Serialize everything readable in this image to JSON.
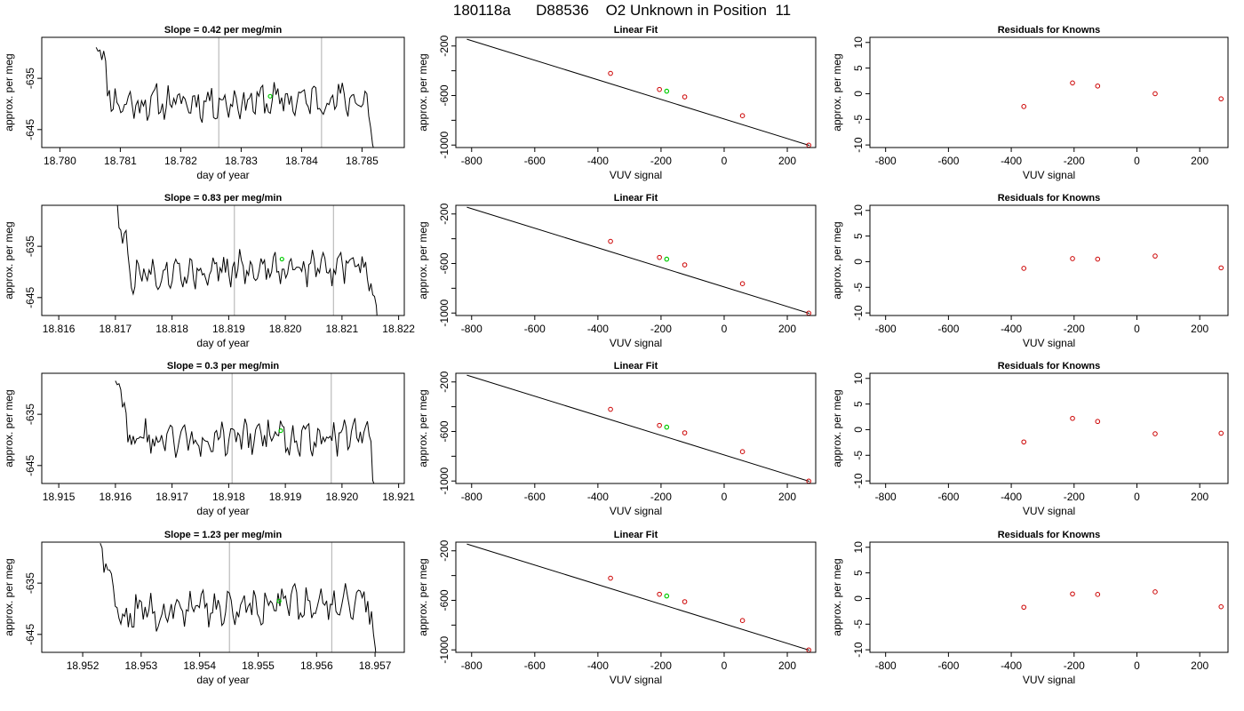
{
  "title": "180118a      D88536    O2 Unknown in Position  11",
  "colors": {
    "trace": "#000000",
    "marker": "#00cc00",
    "known": "#cc0000",
    "vline": "#bbbbbb",
    "fit": "#000000"
  },
  "chart_data": [
    {
      "type": "line",
      "panel": "timeseries",
      "row": 0,
      "title": "Slope =  0.42  per meg/min",
      "xlabel": "day of year",
      "ylabel": "approx. per meg",
      "xlim": [
        18.7797,
        18.7857
      ],
      "ylim": [
        -648.5,
        -627
      ],
      "xticks": [
        "18.780",
        "18.781",
        "18.782",
        "18.783",
        "18.784",
        "18.785"
      ],
      "yticks": [
        "-635",
        "-645"
      ],
      "x_start": 18.7806,
      "x_end": 18.7853,
      "vlines": [
        18.78263,
        18.78433
      ],
      "marker": {
        "x": 18.78348,
        "y": -638.5
      },
      "seed": 11,
      "slope_drift": 0.42
    },
    {
      "type": "line",
      "panel": "fit",
      "row": 0,
      "title": "Linear Fit",
      "xlabel": "VUV signal",
      "ylabel": "approx. per meg",
      "xlim": [
        -850,
        290
      ],
      "ylim": [
        -1020,
        -130
      ],
      "xticks": [
        "-800",
        "-600",
        "-400",
        "-200",
        "0",
        "200"
      ],
      "yticks": [
        "-200",
        "-600",
        "-1000"
      ],
      "line": {
        "x0": -815,
        "y0": -145,
        "x1": 270,
        "y1": -1003
      },
      "knowns": [
        {
          "x": -360,
          "y": -421
        },
        {
          "x": -205,
          "y": -551
        },
        {
          "x": -125,
          "y": -611
        },
        {
          "x": 58,
          "y": -763
        },
        {
          "x": 268,
          "y": -1001
        }
      ],
      "unknown": {
        "x": -182,
        "y": -565
      }
    },
    {
      "type": "scatter",
      "panel": "residuals",
      "row": 0,
      "title": "Residuals for Knowns",
      "xlabel": "VUV signal",
      "ylabel": "approx. per meg",
      "xlim": [
        -850,
        290
      ],
      "ylim": [
        -10.5,
        11
      ],
      "xticks": [
        "-800",
        "-600",
        "-400",
        "-200",
        "0",
        "200"
      ],
      "yticks": [
        "10",
        "5",
        "0",
        "-5",
        "-10"
      ],
      "points": [
        {
          "x": -360,
          "y": -2.5
        },
        {
          "x": -205,
          "y": 2.1
        },
        {
          "x": -125,
          "y": 1.5
        },
        {
          "x": 58,
          "y": 0.0
        },
        {
          "x": 268,
          "y": -1.0
        }
      ]
    },
    {
      "type": "line",
      "panel": "timeseries",
      "row": 1,
      "title": "Slope =  0.83  per meg/min",
      "xlabel": "day of year",
      "ylabel": "approx. per meg",
      "xlim": [
        18.8157,
        18.8221
      ],
      "ylim": [
        -648.5,
        -627
      ],
      "xticks": [
        "18.816",
        "18.817",
        "18.818",
        "18.819",
        "18.820",
        "18.821",
        "18.822"
      ],
      "yticks": [
        "-635",
        "-645"
      ],
      "x_start": 18.817,
      "x_end": 18.8217,
      "vlines": [
        18.8191,
        18.82085
      ],
      "marker": {
        "x": 18.81994,
        "y": -637.5
      },
      "seed": 27,
      "slope_drift": 0.83
    },
    {
      "type": "line",
      "panel": "fit",
      "row": 1,
      "title": "Linear Fit",
      "xlabel": "VUV signal",
      "ylabel": "approx. per meg",
      "xlim": [
        -850,
        290
      ],
      "ylim": [
        -1020,
        -130
      ],
      "xticks": [
        "-800",
        "-600",
        "-400",
        "-200",
        "0",
        "200"
      ],
      "yticks": [
        "-200",
        "-600",
        "-1000"
      ],
      "line": {
        "x0": -815,
        "y0": -145,
        "x1": 270,
        "y1": -1003
      },
      "knowns": [
        {
          "x": -360,
          "y": -421
        },
        {
          "x": -205,
          "y": -551
        },
        {
          "x": -125,
          "y": -611
        },
        {
          "x": 58,
          "y": -763
        },
        {
          "x": 268,
          "y": -1001
        }
      ],
      "unknown": {
        "x": -182,
        "y": -565
      }
    },
    {
      "type": "scatter",
      "panel": "residuals",
      "row": 1,
      "title": "Residuals for Knowns",
      "xlabel": "VUV signal",
      "ylabel": "approx. per meg",
      "xlim": [
        -850,
        290
      ],
      "ylim": [
        -10.5,
        11
      ],
      "xticks": [
        "-800",
        "-600",
        "-400",
        "-200",
        "0",
        "200"
      ],
      "yticks": [
        "10",
        "5",
        "0",
        "-5",
        "-10"
      ],
      "points": [
        {
          "x": -360,
          "y": -1.3
        },
        {
          "x": -205,
          "y": 0.6
        },
        {
          "x": -125,
          "y": 0.5
        },
        {
          "x": 58,
          "y": 1.1
        },
        {
          "x": 268,
          "y": -1.2
        }
      ]
    },
    {
      "type": "line",
      "panel": "timeseries",
      "row": 2,
      "title": "Slope =  0.3  per meg/min",
      "xlabel": "day of year",
      "ylabel": "approx. per meg",
      "xlim": [
        18.9147,
        18.9211
      ],
      "ylim": [
        -648.5,
        -627
      ],
      "xticks": [
        "18.915",
        "18.916",
        "18.917",
        "18.918",
        "18.919",
        "18.920",
        "18.921"
      ],
      "yticks": [
        "-635",
        "-645"
      ],
      "x_start": 18.916,
      "x_end": 18.9207,
      "vlines": [
        18.91806,
        18.91981
      ],
      "marker": {
        "x": 18.91892,
        "y": -638.2
      },
      "seed": 43,
      "slope_drift": 0.3
    },
    {
      "type": "line",
      "panel": "fit",
      "row": 2,
      "title": "Linear Fit",
      "xlabel": "VUV signal",
      "ylabel": "approx. per meg",
      "xlim": [
        -850,
        290
      ],
      "ylim": [
        -1020,
        -130
      ],
      "xticks": [
        "-800",
        "-600",
        "-400",
        "-200",
        "0",
        "200"
      ],
      "yticks": [
        "-200",
        "-600",
        "-1000"
      ],
      "line": {
        "x0": -815,
        "y0": -145,
        "x1": 270,
        "y1": -1003
      },
      "knowns": [
        {
          "x": -360,
          "y": -421
        },
        {
          "x": -205,
          "y": -551
        },
        {
          "x": -125,
          "y": -611
        },
        {
          "x": 58,
          "y": -763
        },
        {
          "x": 268,
          "y": -1001
        }
      ],
      "unknown": {
        "x": -182,
        "y": -565
      }
    },
    {
      "type": "scatter",
      "panel": "residuals",
      "row": 2,
      "title": "Residuals for Knowns",
      "xlabel": "VUV signal",
      "ylabel": "approx. per meg",
      "xlim": [
        -850,
        290
      ],
      "ylim": [
        -10.5,
        11
      ],
      "xticks": [
        "-800",
        "-600",
        "-400",
        "-200",
        "0",
        "200"
      ],
      "yticks": [
        "10",
        "5",
        "0",
        "-5",
        "-10"
      ],
      "points": [
        {
          "x": -360,
          "y": -2.4
        },
        {
          "x": -205,
          "y": 2.2
        },
        {
          "x": -125,
          "y": 1.6
        },
        {
          "x": 58,
          "y": -0.8
        },
        {
          "x": 268,
          "y": -0.7
        }
      ]
    },
    {
      "type": "line",
      "panel": "timeseries",
      "row": 3,
      "title": "Slope =  1.23  per meg/min",
      "xlabel": "day of year",
      "ylabel": "approx. per meg",
      "xlim": [
        18.9513,
        18.9575
      ],
      "ylim": [
        -648.5,
        -627
      ],
      "xticks": [
        "18.952",
        "18.953",
        "18.954",
        "18.955",
        "18.956",
        "18.957"
      ],
      "yticks": [
        "-635",
        "-645"
      ],
      "x_start": 18.9523,
      "x_end": 18.9571,
      "vlines": [
        18.95451,
        18.95626
      ],
      "marker": {
        "x": 18.95536,
        "y": -638.5
      },
      "seed": 59,
      "slope_drift": 1.23
    },
    {
      "type": "line",
      "panel": "fit",
      "row": 3,
      "title": "Linear Fit",
      "xlabel": "VUV signal",
      "ylabel": "approx. per meg",
      "xlim": [
        -850,
        290
      ],
      "ylim": [
        -1020,
        -130
      ],
      "xticks": [
        "-800",
        "-600",
        "-400",
        "-200",
        "0",
        "200"
      ],
      "yticks": [
        "-200",
        "-600",
        "-1000"
      ],
      "line": {
        "x0": -815,
        "y0": -145,
        "x1": 270,
        "y1": -1003
      },
      "knowns": [
        {
          "x": -360,
          "y": -421
        },
        {
          "x": -205,
          "y": -551
        },
        {
          "x": -125,
          "y": -611
        },
        {
          "x": 58,
          "y": -763
        },
        {
          "x": 268,
          "y": -1001
        }
      ],
      "unknown": {
        "x": -182,
        "y": -565
      }
    },
    {
      "type": "scatter",
      "panel": "residuals",
      "row": 3,
      "title": "Residuals for Knowns",
      "xlabel": "VUV signal",
      "ylabel": "approx. per meg",
      "xlim": [
        -850,
        290
      ],
      "ylim": [
        -10.5,
        11
      ],
      "xticks": [
        "-800",
        "-600",
        "-400",
        "-200",
        "0",
        "200"
      ],
      "yticks": [
        "10",
        "5",
        "0",
        "-5",
        "-10"
      ],
      "points": [
        {
          "x": -360,
          "y": -1.7
        },
        {
          "x": -205,
          "y": 0.9
        },
        {
          "x": -125,
          "y": 0.8
        },
        {
          "x": 58,
          "y": 1.3
        },
        {
          "x": 268,
          "y": -1.6
        }
      ]
    }
  ]
}
